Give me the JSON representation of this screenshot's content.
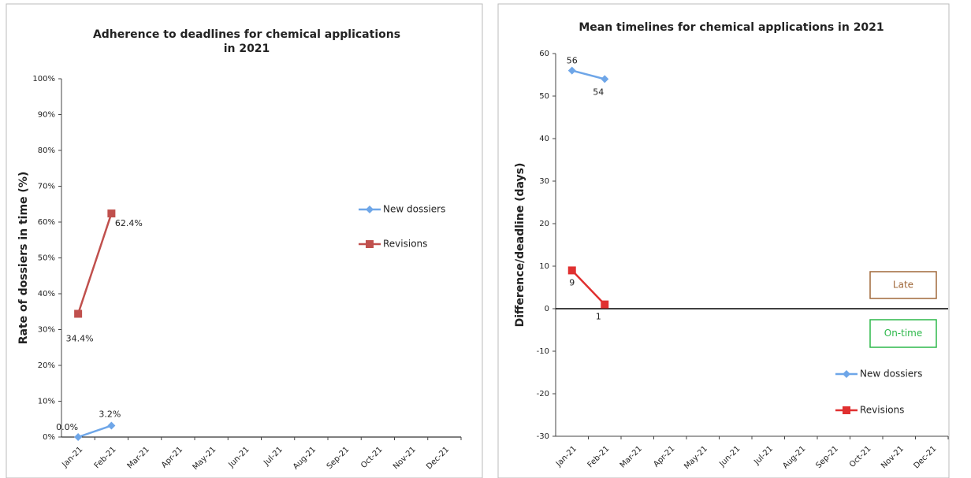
{
  "chart_data": [
    {
      "type": "line",
      "title": [
        "Adherence to deadlines for chemical applications",
        "in 2021"
      ],
      "ylabel": "Rate of dossiers in time (%)",
      "categories": [
        "Jan-21",
        "Feb-21",
        "Mar-21",
        "Apr-21",
        "May-21",
        "Jun-21",
        "Jul-21",
        "Aug-21",
        "Sep-21",
        "Oct-21",
        "Nov-21",
        "Dec-21"
      ],
      "series": [
        {
          "name": "New dossiers",
          "color": "#6ea6e8",
          "marker": "diamond",
          "values": [
            0,
            3.2,
            null,
            null,
            null,
            null,
            null,
            null,
            null,
            null,
            null,
            null
          ],
          "value_labels": [
            "0.0%",
            "3.2%",
            null,
            null,
            null,
            null,
            null,
            null,
            null,
            null,
            null,
            null
          ]
        },
        {
          "name": "Revisions",
          "color": "#c0504d",
          "marker": "square",
          "values": [
            34.4,
            62.4,
            null,
            null,
            null,
            null,
            null,
            null,
            null,
            null,
            null,
            null
          ],
          "value_labels": [
            "34.4%",
            "62.4%",
            null,
            null,
            null,
            null,
            null,
            null,
            null,
            null,
            null,
            null
          ]
        }
      ],
      "ylim": [
        0,
        100
      ],
      "yticks": [
        {
          "value": 0,
          "label": "0%"
        },
        {
          "value": 10,
          "label": "10%"
        },
        {
          "value": 20,
          "label": "20%"
        },
        {
          "value": 30,
          "label": "30%"
        },
        {
          "value": 40,
          "label": "40%"
        },
        {
          "value": 50,
          "label": "50%"
        },
        {
          "value": 60,
          "label": "60%"
        },
        {
          "value": 70,
          "label": "70%"
        },
        {
          "value": 80,
          "label": "80%"
        },
        {
          "value": 90,
          "label": "90%"
        },
        {
          "value": 100,
          "label": "100%"
        }
      ],
      "legend": "right"
    },
    {
      "type": "line",
      "title": [
        "Mean timelines for chemical applications in 2021"
      ],
      "ylabel": "Difference/deadline (days)",
      "categories": [
        "Jan-21",
        "Feb-21",
        "Mar-21",
        "Apr-21",
        "May-21",
        "Jun-21",
        "Jul-21",
        "Aug-21",
        "Sep-21",
        "Oct-21",
        "Nov-21",
        "Dec-21"
      ],
      "series": [
        {
          "name": "New dossiers",
          "color": "#6ea6e8",
          "marker": "diamond",
          "values": [
            56,
            54,
            null,
            null,
            null,
            null,
            null,
            null,
            null,
            null,
            null,
            null
          ]
        },
        {
          "name": "Revisions",
          "color": "#e03030",
          "marker": "square",
          "values": [
            9,
            1,
            null,
            null,
            null,
            null,
            null,
            null,
            null,
            null,
            null,
            null
          ]
        }
      ],
      "ylim": [
        -30,
        60
      ],
      "yticks": [
        -30,
        -20,
        -10,
        0,
        10,
        20,
        30,
        40,
        50,
        60
      ],
      "annotations": [
        "Late",
        "On-time"
      ],
      "legend": "lower right"
    }
  ]
}
